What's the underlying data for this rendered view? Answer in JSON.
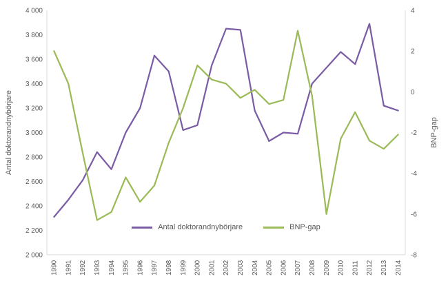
{
  "chart_data": {
    "type": "line",
    "categories": [
      "1990",
      "1991",
      "1992",
      "1993",
      "1994",
      "1995",
      "1996",
      "1997",
      "1998",
      "1999",
      "2000",
      "2001",
      "2002",
      "2003",
      "2004",
      "2005",
      "2006",
      "2007",
      "2008",
      "2009",
      "2010",
      "2011",
      "2012",
      "2013",
      "2014"
    ],
    "series": [
      {
        "name": "Antal doktorandnybörjare",
        "axis": "left",
        "color": "#7B5DA5",
        "values": [
          2310,
          2450,
          2610,
          2840,
          2700,
          3000,
          3200,
          3630,
          3500,
          3020,
          3060,
          3550,
          3850,
          3840,
          3180,
          2930,
          3000,
          2990,
          3400,
          3530,
          3660,
          3560,
          3890,
          3220,
          3180
        ]
      },
      {
        "name": "BNP-gap",
        "axis": "right",
        "color": "#9BBB59",
        "values": [
          2.0,
          0.4,
          -3.0,
          -6.3,
          -5.9,
          -4.2,
          -5.4,
          -4.6,
          -2.5,
          -0.8,
          1.3,
          0.6,
          0.4,
          -0.3,
          0.1,
          -0.6,
          -0.4,
          3.0,
          -0.2,
          -6.0,
          -2.3,
          -1.0,
          -2.4,
          -2.8,
          -2.1
        ]
      }
    ],
    "left_axis": {
      "label": "Antal doktorandnybörjare",
      "min": 2000,
      "max": 4000,
      "tick_labels": [
        "4 000",
        "3 800",
        "3 600",
        "3 400",
        "3 200",
        "3 000",
        "2 800",
        "2 600",
        "2 400",
        "2 200",
        "2 000"
      ]
    },
    "right_axis": {
      "label": "BNP-gap",
      "min": -8,
      "max": 4,
      "tick_labels": [
        "4",
        "2",
        "0",
        "-2",
        "-4",
        "-6",
        "-8"
      ]
    },
    "legend": {
      "position": "bottom-center"
    },
    "grid": false
  },
  "colors": {
    "text": "#595959",
    "axis_line": "#D9D9D9",
    "background": "#FFFFFF"
  }
}
